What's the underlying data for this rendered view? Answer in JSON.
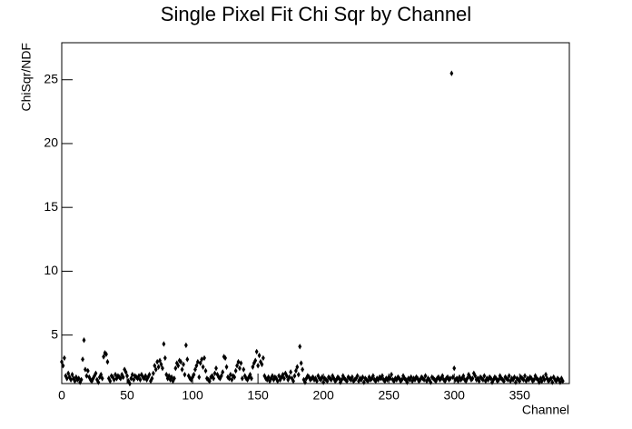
{
  "chart_data": {
    "type": "scatter",
    "title": "Single Pixel Fit Chi Sqr by Channel",
    "x_label": "Channel",
    "y_label": "ChiSqr/NDF",
    "color": "#000000",
    "xlim": [
      0,
      388
    ],
    "ylim": [
      1.2,
      27.9
    ],
    "xticks": [
      0,
      50,
      100,
      150,
      200,
      250,
      300,
      350
    ],
    "yticks": [
      5,
      10,
      15,
      20,
      25
    ],
    "x": [
      0,
      1,
      2,
      3,
      4,
      5,
      6,
      7,
      8,
      9,
      10,
      11,
      12,
      13,
      14,
      15,
      16,
      17,
      18,
      19,
      20,
      21,
      22,
      23,
      24,
      25,
      26,
      27,
      28,
      29,
      30,
      31,
      32,
      33,
      34,
      35,
      36,
      37,
      38,
      39,
      40,
      41,
      42,
      43,
      44,
      45,
      46,
      47,
      48,
      49,
      50,
      51,
      52,
      53,
      54,
      55,
      56,
      57,
      58,
      59,
      60,
      61,
      62,
      63,
      64,
      65,
      66,
      67,
      68,
      69,
      70,
      71,
      72,
      73,
      74,
      75,
      76,
      77,
      78,
      79,
      80,
      81,
      82,
      83,
      84,
      85,
      86,
      87,
      88,
      89,
      90,
      91,
      92,
      93,
      94,
      95,
      96,
      97,
      98,
      99,
      100,
      101,
      102,
      103,
      104,
      105,
      106,
      107,
      108,
      109,
      110,
      111,
      112,
      113,
      114,
      115,
      116,
      117,
      118,
      119,
      120,
      121,
      122,
      123,
      124,
      125,
      126,
      127,
      128,
      129,
      130,
      131,
      132,
      133,
      134,
      135,
      136,
      137,
      138,
      139,
      140,
      141,
      142,
      143,
      144,
      145,
      146,
      147,
      148,
      149,
      150,
      151,
      152,
      153,
      154,
      155,
      156,
      157,
      158,
      159,
      160,
      161,
      162,
      163,
      164,
      165,
      166,
      167,
      168,
      169,
      170,
      171,
      172,
      173,
      174,
      175,
      176,
      177,
      178,
      179,
      180,
      181,
      182,
      183,
      184,
      185,
      186,
      187,
      188,
      189,
      190,
      191,
      192,
      193,
      194,
      195,
      196,
      197,
      198,
      199,
      200,
      201,
      202,
      203,
      204,
      205,
      206,
      207,
      208,
      209,
      210,
      211,
      212,
      213,
      214,
      215,
      216,
      217,
      218,
      219,
      220,
      221,
      222,
      223,
      224,
      225,
      226,
      227,
      228,
      229,
      230,
      231,
      232,
      233,
      234,
      235,
      236,
      237,
      238,
      239,
      240,
      241,
      242,
      243,
      244,
      245,
      246,
      247,
      248,
      249,
      250,
      251,
      252,
      253,
      254,
      255,
      256,
      257,
      258,
      259,
      260,
      261,
      262,
      263,
      264,
      265,
      266,
      267,
      268,
      269,
      270,
      271,
      272,
      273,
      274,
      275,
      276,
      277,
      278,
      279,
      280,
      281,
      282,
      283,
      284,
      285,
      286,
      287,
      288,
      289,
      290,
      291,
      292,
      293,
      294,
      295,
      296,
      297,
      298,
      299,
      300,
      301,
      302,
      303,
      304,
      305,
      306,
      307,
      308,
      309,
      310,
      311,
      312,
      313,
      314,
      315,
      316,
      317,
      318,
      319,
      320,
      321,
      322,
      323,
      324,
      325,
      326,
      327,
      328,
      329,
      330,
      331,
      332,
      333,
      334,
      335,
      336,
      337,
      338,
      339,
      340,
      341,
      342,
      343,
      344,
      345,
      346,
      347,
      348,
      349,
      350,
      351,
      352,
      353,
      354,
      355,
      356,
      357,
      358,
      359,
      360,
      361,
      362,
      363,
      364,
      365,
      366,
      367,
      368,
      369,
      370,
      371,
      372,
      373,
      374,
      375,
      376,
      377,
      378,
      379,
      380,
      381,
      382,
      383
    ],
    "values": [
      2.9,
      2.6,
      3.2,
      1.8,
      1.6,
      2.0,
      1.7,
      1.5,
      1.9,
      1.6,
      1.4,
      1.7,
      1.5,
      1.6,
      1.3,
      1.5,
      3.1,
      4.6,
      2.3,
      1.8,
      2.2,
      1.7,
      1.5,
      1.4,
      1.6,
      1.8,
      2.0,
      1.5,
      1.3,
      1.7,
      1.9,
      1.6,
      3.3,
      3.6,
      3.5,
      2.9,
      1.6,
      1.4,
      1.8,
      1.7,
      1.5,
      1.9,
      1.6,
      1.8,
      1.7,
      1.6,
      1.9,
      1.7,
      2.3,
      2.1,
      1.8,
      1.4,
      1.2,
      1.6,
      1.9,
      1.5,
      1.8,
      1.7,
      1.6,
      1.8,
      1.5,
      1.9,
      1.7,
      1.6,
      1.8,
      1.5,
      1.7,
      1.9,
      1.4,
      1.6,
      2.0,
      2.6,
      2.3,
      2.9,
      2.5,
      3.0,
      2.7,
      2.4,
      4.3,
      3.2,
      1.9,
      1.6,
      1.8,
      1.5,
      1.7,
      1.4,
      1.6,
      2.4,
      2.8,
      2.6,
      3.0,
      2.9,
      2.3,
      2.7,
      1.9,
      4.2,
      3.1,
      1.8,
      1.6,
      1.5,
      1.7,
      1.9,
      2.3,
      2.6,
      2.9,
      1.7,
      2.8,
      3.1,
      2.5,
      3.2,
      2.2,
      1.6,
      1.5,
      1.4,
      1.7,
      1.8,
      1.6,
      2.0,
      2.4,
      1.9,
      1.7,
      1.6,
      1.8,
      2.1,
      3.3,
      3.2,
      2.5,
      1.7,
      1.6,
      1.9,
      1.5,
      1.8,
      1.7,
      2.2,
      2.6,
      2.9,
      2.4,
      2.8,
      1.6,
      2.3,
      1.8,
      1.6,
      1.5,
      1.7,
      1.9,
      1.6,
      2.5,
      2.8,
      3.0,
      3.7,
      2.6,
      3.4,
      2.9,
      2.7,
      3.2,
      1.8,
      1.6,
      1.5,
      1.7,
      1.4,
      1.6,
      1.8,
      1.5,
      1.7,
      1.6,
      1.4,
      1.8,
      1.5,
      1.7,
      1.9,
      1.6,
      2.0,
      1.8,
      1.5,
      1.7,
      2.1,
      1.6,
      1.4,
      1.8,
      2.2,
      2.5,
      1.9,
      4.1,
      2.8,
      2.3,
      1.5,
      1.3,
      1.6,
      1.8,
      1.7,
      1.5,
      1.6,
      1.7,
      1.5,
      1.6,
      1.4,
      1.8,
      1.6,
      1.5,
      1.7,
      1.3,
      1.6,
      1.5,
      1.4,
      1.7,
      1.6,
      1.5,
      1.8,
      1.6,
      1.4,
      1.5,
      1.7,
      1.6,
      1.3,
      1.5,
      1.8,
      1.6,
      1.5,
      1.4,
      1.7,
      1.6,
      1.5,
      1.7,
      1.4,
      1.5,
      1.6,
      1.8,
      1.4,
      1.6,
      1.5,
      1.7,
      1.3,
      1.6,
      1.5,
      1.4,
      1.7,
      1.5,
      1.6,
      1.8,
      1.5,
      1.4,
      1.6,
      1.5,
      1.7,
      1.6,
      1.8,
      1.5,
      1.4,
      1.6,
      1.5,
      1.7,
      1.6,
      1.9,
      1.5,
      1.4,
      1.6,
      1.5,
      1.7,
      1.6,
      1.4,
      1.5,
      1.8,
      1.6,
      1.5,
      1.3,
      1.6,
      1.5,
      1.7,
      1.4,
      1.6,
      1.5,
      1.7,
      1.6,
      1.4,
      1.5,
      1.7,
      1.6,
      1.5,
      1.8,
      1.4,
      1.6,
      1.5,
      1.3,
      1.7,
      1.6,
      1.5,
      1.4,
      1.6,
      1.7,
      1.5,
      1.6,
      1.8,
      1.5,
      1.4,
      1.6,
      1.7,
      1.5,
      1.6,
      25.5,
      1.7,
      2.4,
      1.5,
      1.6,
      1.4,
      1.7,
      1.5,
      1.6,
      1.8,
      1.5,
      1.4,
      1.6,
      1.9,
      1.7,
      1.5,
      1.6,
      2.0,
      1.8,
      1.5,
      1.6,
      1.4,
      1.7,
      1.6,
      1.5,
      1.8,
      1.4,
      1.6,
      1.5,
      1.7,
      1.6,
      1.3,
      1.5,
      1.7,
      1.6,
      1.4,
      1.5,
      1.8,
      1.6,
      1.5,
      1.4,
      1.7,
      1.6,
      1.5,
      1.8,
      1.4,
      1.6,
      1.5,
      1.7,
      1.3,
      1.6,
      1.5,
      1.4,
      1.7,
      1.6,
      1.5,
      1.8,
      1.4,
      1.6,
      1.5,
      1.7,
      1.6,
      1.4,
      1.5,
      1.8,
      1.6,
      1.5,
      1.3,
      1.6,
      1.4,
      1.7,
      1.5,
      1.9,
      1.6,
      1.4,
      1.5,
      1.6,
      1.3,
      1.7,
      1.5,
      1.4,
      1.6,
      1.5,
      1.3,
      1.6,
      1.4
    ]
  }
}
